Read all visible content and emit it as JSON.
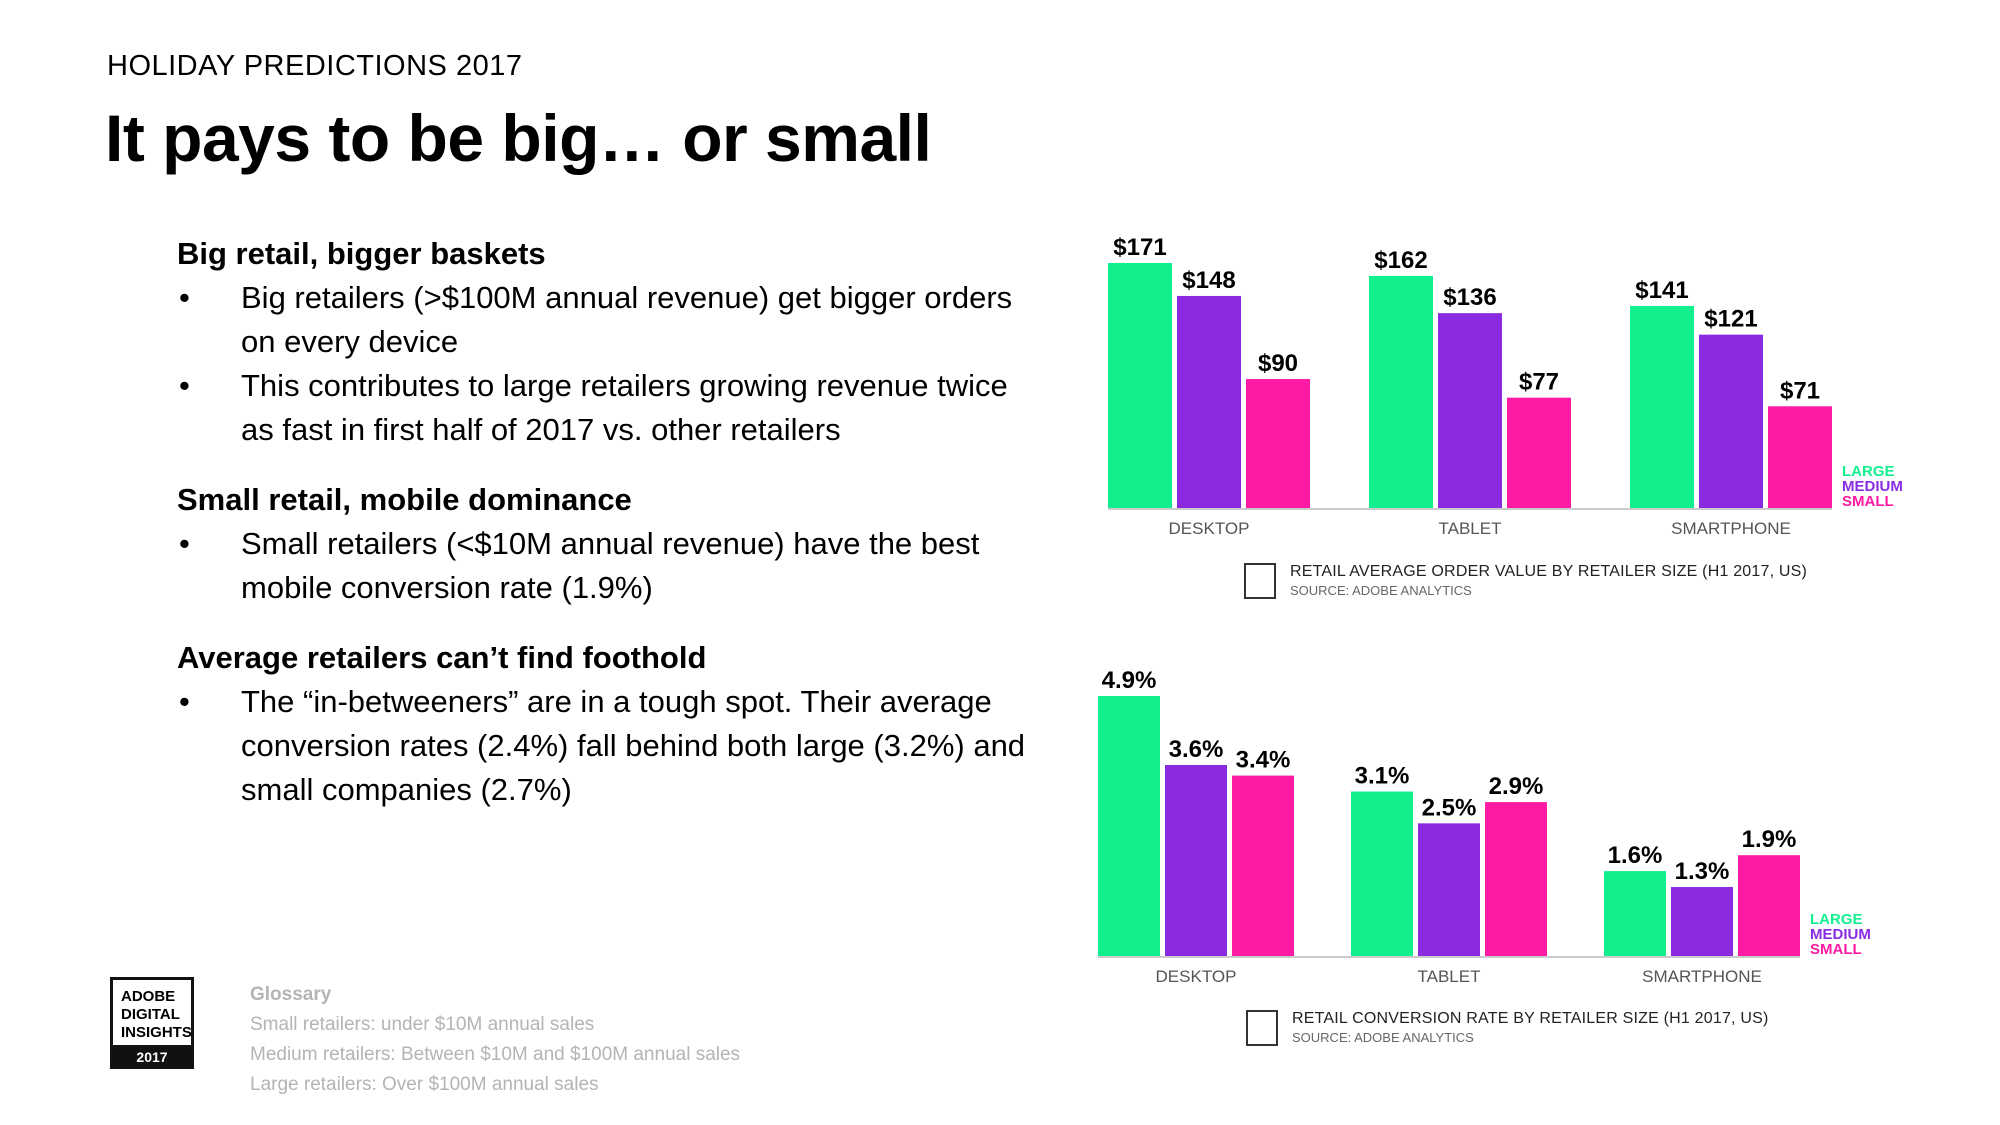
{
  "header": {
    "eyebrow": "HOLIDAY PREDICTIONS 2017",
    "title": "It pays to be big… or small"
  },
  "sections": [
    {
      "heading": "Big retail, bigger baskets",
      "bullets": [
        "Big retailers (>$100M annual revenue) get bigger orders on every device",
        "This contributes to large retailers growing revenue twice as fast in first half of 2017 vs. other retailers"
      ]
    },
    {
      "heading": "Small retail, mobile dominance",
      "bullets": [
        "Small retailers (<$10M annual revenue) have the best mobile conversion rate (1.9%)"
      ]
    },
    {
      "heading": "Average retailers can’t find foothold",
      "bullets": [
        "The “in-betweeners” are in a tough spot. Their average conversion rates (2.4%) fall behind both large (3.2%) and small companies (2.7%)"
      ]
    }
  ],
  "colors": {
    "large": "#12f08e",
    "medium": "#8a2be2",
    "small": "#ff1aa3",
    "axis": "#cccccc"
  },
  "chart_data": [
    {
      "type": "bar",
      "categories": [
        "DESKTOP",
        "TABLET",
        "SMARTPHONE"
      ],
      "series": [
        {
          "name": "LARGE",
          "values": [
            171,
            162,
            141
          ],
          "labels": [
            "$171",
            "$162",
            "$141"
          ]
        },
        {
          "name": "MEDIUM",
          "values": [
            148,
            136,
            121
          ],
          "labels": [
            "$148",
            "$136",
            "$121"
          ]
        },
        {
          "name": "SMALL",
          "values": [
            90,
            77,
            71
          ],
          "labels": [
            "$90",
            "$77",
            "$71"
          ]
        }
      ],
      "ylim": [
        0,
        171
      ],
      "title": "RETAIL AVERAGE ORDER VALUE BY RETAILER SIZE (H1 2017, US)",
      "source": "SOURCE: ADOBE ANALYTICS",
      "legend": [
        "LARGE",
        "MEDIUM",
        "SMALL"
      ]
    },
    {
      "type": "bar",
      "categories": [
        "DESKTOP",
        "TABLET",
        "SMARTPHONE"
      ],
      "series": [
        {
          "name": "LARGE",
          "values": [
            4.9,
            3.1,
            1.6
          ],
          "labels": [
            "4.9%",
            "3.1%",
            "1.6%"
          ]
        },
        {
          "name": "MEDIUM",
          "values": [
            3.6,
            2.5,
            1.3
          ],
          "labels": [
            "3.6%",
            "2.5%",
            "1.3%"
          ]
        },
        {
          "name": "SMALL",
          "values": [
            3.4,
            2.9,
            1.9
          ],
          "labels": [
            "3.4%",
            "2.9%",
            "1.9%"
          ]
        }
      ],
      "ylim": [
        0,
        4.9
      ],
      "title": "RETAIL CONVERSION RATE BY RETAILER SIZE (H1 2017, US)",
      "source": "SOURCE: ADOBE ANALYTICS",
      "legend": [
        "LARGE",
        "MEDIUM",
        "SMALL"
      ]
    }
  ],
  "badge": {
    "line1": "ADOBE",
    "line2": "DIGITAL",
    "line3": "INSIGHTS",
    "year": "2017"
  },
  "glossary": {
    "title": "Glossary",
    "items": [
      "Small retailers: under $10M annual sales",
      "Medium retailers: Between $10M and $100M annual sales",
      "Large retailers: Over $100M annual sales"
    ]
  }
}
